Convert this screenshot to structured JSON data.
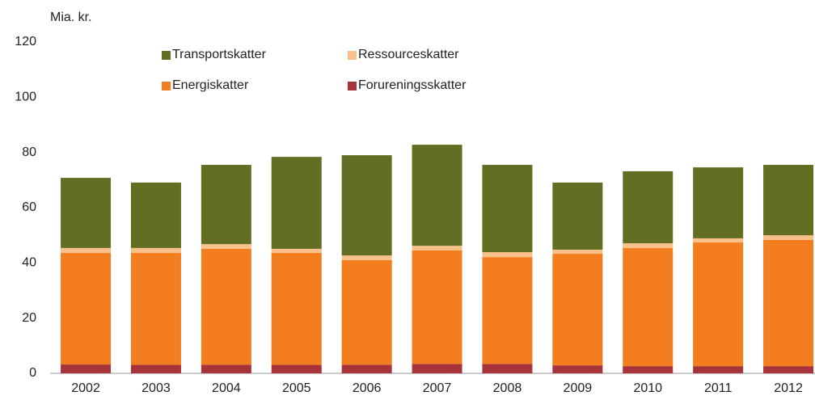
{
  "chart_data": {
    "type": "stacked_bar",
    "ylabel": "Mia. kr.",
    "categories": [
      "2002",
      "2003",
      "2004",
      "2005",
      "2006",
      "2007",
      "2008",
      "2009",
      "2010",
      "2011",
      "2012"
    ],
    "series": [
      {
        "name": "Forureningsskatter",
        "color": "#a6343a",
        "values": [
          3.2,
          3.1,
          3.1,
          3.1,
          3.1,
          3.4,
          3.4,
          2.9,
          2.6,
          2.6,
          2.6
        ]
      },
      {
        "name": "Energiskatter",
        "color": "#f47d20",
        "values": [
          40.4,
          40.5,
          42.0,
          40.5,
          37.9,
          41.1,
          38.7,
          40.4,
          42.8,
          44.8,
          45.7
        ]
      },
      {
        "name": "Ressourceskatter",
        "color": "#f9c08a",
        "values": [
          1.8,
          1.8,
          1.7,
          1.5,
          1.7,
          1.7,
          1.8,
          1.5,
          1.7,
          1.5,
          1.7
        ]
      },
      {
        "name": "Transportskatter",
        "color": "#636e22",
        "values": [
          25.4,
          23.7,
          28.7,
          33.3,
          36.3,
          36.6,
          31.6,
          24.3,
          26.1,
          25.7,
          25.5
        ]
      }
    ],
    "ylim": [
      0,
      120
    ],
    "yticks": [
      0,
      20,
      40,
      60,
      80,
      100,
      120
    ],
    "grid": false
  }
}
